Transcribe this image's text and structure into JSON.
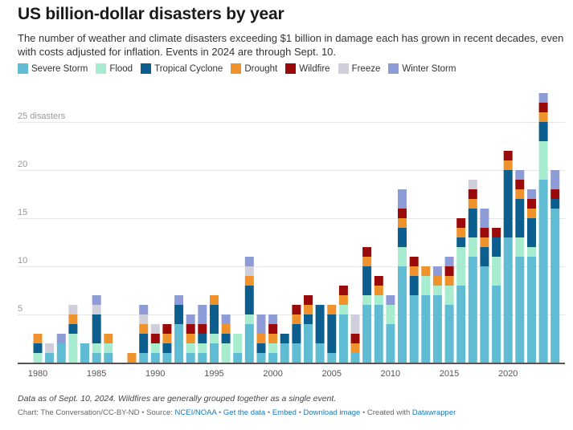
{
  "header": {
    "title": "US billion-dollar disasters by year",
    "subtitle": "The number of weather and climate disasters exceeding $1 billion in damage each has grown in recent decades, even with costs adjusted for inflation. Events in 2024 are through Sept. 10."
  },
  "legend": [
    {
      "name": "Severe Storm",
      "color": "#5fbcd3"
    },
    {
      "name": "Flood",
      "color": "#a8ecd0"
    },
    {
      "name": "Tropical Cyclone",
      "color": "#0c5e8e"
    },
    {
      "name": "Drought",
      "color": "#f0922b"
    },
    {
      "name": "Wildfire",
      "color": "#9b0a0a"
    },
    {
      "name": "Freeze",
      "color": "#cfcfdc"
    },
    {
      "name": "Winter Storm",
      "color": "#8d9bd6"
    }
  ],
  "chart_data": {
    "type": "bar",
    "stacked": true,
    "title": "US billion-dollar disasters by year",
    "xlabel": "",
    "ylabel": "disasters",
    "ylim": [
      0,
      28
    ],
    "yticks": [
      5,
      10,
      15,
      20,
      25
    ],
    "ytick_labels": [
      "5",
      "10",
      "15",
      "20",
      "25 disasters"
    ],
    "xticks": [
      1980,
      1985,
      1990,
      1995,
      2000,
      2005,
      2010,
      2015,
      2020
    ],
    "grid": true,
    "legend_position": "top-left",
    "categories": [
      1980,
      1981,
      1982,
      1983,
      1984,
      1985,
      1986,
      1987,
      1988,
      1989,
      1990,
      1991,
      1992,
      1993,
      1994,
      1995,
      1996,
      1997,
      1998,
      1999,
      2000,
      2001,
      2002,
      2003,
      2004,
      2005,
      2006,
      2007,
      2008,
      2009,
      2010,
      2011,
      2012,
      2013,
      2014,
      2015,
      2016,
      2017,
      2018,
      2019,
      2020,
      2021,
      2022,
      2023,
      2024
    ],
    "series": [
      {
        "name": "Severe Storm",
        "values": [
          0,
          1,
          2,
          0,
          2,
          1,
          1,
          0,
          0,
          1,
          1,
          1,
          4,
          1,
          1,
          2,
          0,
          1,
          4,
          1,
          1,
          2,
          2,
          4,
          2,
          1,
          5,
          1,
          6,
          6,
          4,
          10,
          7,
          7,
          7,
          6,
          8,
          11,
          10,
          8,
          13,
          11,
          11,
          19,
          16
        ]
      },
      {
        "name": "Flood",
        "values": [
          1,
          0,
          0,
          3,
          0,
          1,
          1,
          0,
          0,
          0,
          1,
          0,
          0,
          1,
          1,
          1,
          2,
          2,
          1,
          0,
          1,
          0,
          0,
          0,
          0,
          0,
          1,
          0,
          1,
          1,
          2,
          2,
          0,
          2,
          1,
          2,
          4,
          2,
          0,
          3,
          0,
          2,
          1,
          4,
          0
        ]
      },
      {
        "name": "Tropical Cyclone",
        "values": [
          1,
          0,
          0,
          1,
          0,
          3,
          0,
          0,
          0,
          2,
          0,
          1,
          2,
          0,
          1,
          3,
          1,
          0,
          3,
          1,
          0,
          1,
          2,
          1,
          4,
          4,
          0,
          0,
          3,
          0,
          0,
          2,
          2,
          0,
          0,
          0,
          1,
          3,
          2,
          2,
          7,
          4,
          3,
          2,
          1
        ]
      },
      {
        "name": "Drought",
        "values": [
          1,
          0,
          0,
          1,
          0,
          0,
          1,
          0,
          1,
          1,
          0,
          1,
          0,
          1,
          0,
          1,
          1,
          0,
          1,
          1,
          1,
          0,
          1,
          1,
          0,
          1,
          1,
          1,
          1,
          1,
          0,
          1,
          1,
          1,
          1,
          1,
          1,
          1,
          1,
          0,
          1,
          1,
          1,
          1,
          0
        ]
      },
      {
        "name": "Wildfire",
        "values": [
          0,
          0,
          0,
          0,
          0,
          0,
          0,
          0,
          0,
          0,
          1,
          1,
          0,
          1,
          1,
          0,
          0,
          0,
          0,
          0,
          1,
          0,
          1,
          1,
          0,
          0,
          1,
          1,
          1,
          1,
          0,
          1,
          1,
          0,
          0,
          1,
          1,
          1,
          1,
          1,
          1,
          1,
          1,
          1,
          1
        ]
      },
      {
        "name": "Freeze",
        "values": [
          0,
          1,
          0,
          1,
          0,
          1,
          0,
          0,
          0,
          1,
          1,
          0,
          0,
          0,
          0,
          0,
          0,
          0,
          1,
          0,
          0,
          0,
          0,
          0,
          0,
          0,
          0,
          2,
          0,
          0,
          0,
          0,
          0,
          0,
          0,
          0,
          0,
          1,
          0,
          0,
          0,
          0,
          0,
          0,
          0
        ]
      },
      {
        "name": "Winter Storm",
        "values": [
          0,
          0,
          1,
          0,
          0,
          1,
          0,
          0,
          0,
          1,
          0,
          0,
          1,
          1,
          2,
          0,
          1,
          0,
          1,
          2,
          1,
          0,
          0,
          0,
          0,
          0,
          0,
          0,
          0,
          0,
          1,
          2,
          0,
          0,
          1,
          1,
          0,
          0,
          2,
          0,
          0,
          1,
          1,
          1,
          2
        ]
      }
    ]
  },
  "footer": {
    "note": "Data as of Sept. 10, 2024. Wildfires are generally grouped together as a single event.",
    "credit": "Chart: The Conversation/CC-BY-ND",
    "source_label": "Source:",
    "source_link": "NCEI/NOAA",
    "get_data": "Get the data",
    "embed": "Embed",
    "download": "Download image",
    "created_with": "Created with",
    "datawrapper": "Datawrapper",
    "separator": "•"
  }
}
